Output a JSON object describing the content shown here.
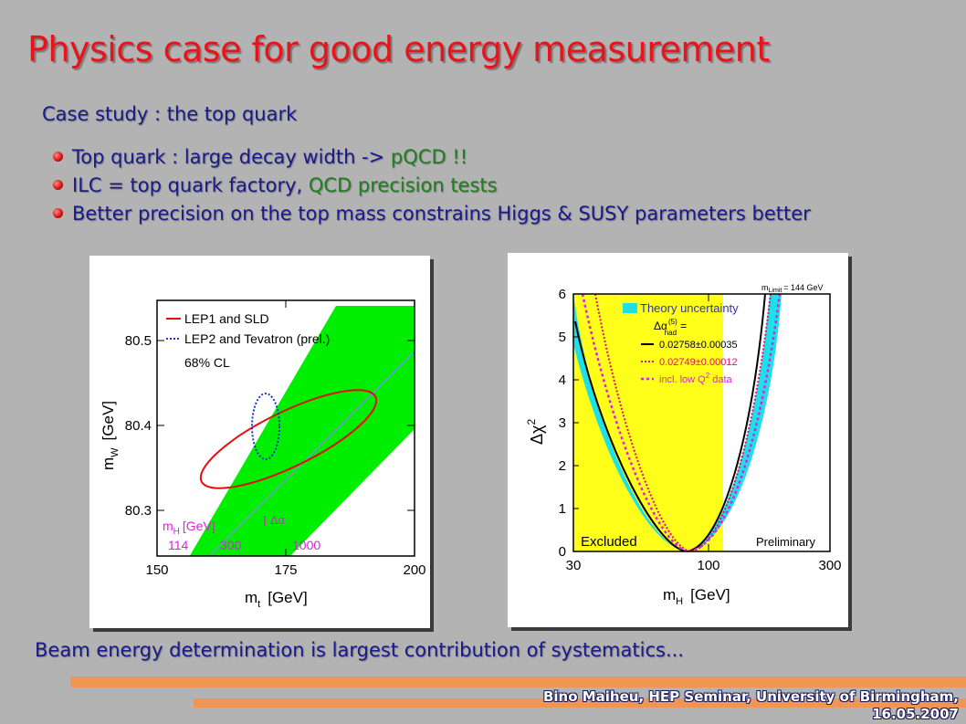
{
  "slide": {
    "title": "Physics case for good energy measurement",
    "subtitle": "Case study : the top quark",
    "bullets": [
      {
        "text": "Top quark : large decay width -> ",
        "highlight": "pQCD !!"
      },
      {
        "text": "ILC = top quark factory, ",
        "highlight": "QCD precision tests"
      },
      {
        "text": "Better precision on the top mass constrains Higgs & SUSY parameters better",
        "highlight": ""
      }
    ],
    "bottom_text": "Beam energy determination is largest contribution of systematics...",
    "footer_line1": "Bino Maiheu, HEP Seminar, University of Birmingham,",
    "footer_line2": "16.05.2007"
  },
  "colors": {
    "title": "#e8141b",
    "text": "#1a1a8c",
    "highlight": "#1f7f1f",
    "accent_bar": "#f29452",
    "band_green": "#00ee00",
    "band_yellow": "#ffff1a",
    "band_cyan": "#1ee0e8"
  },
  "plot1": {
    "xlabel_main": "m",
    "xlabel_sub": "t",
    "xlabel_unit": "[GeV]",
    "ylabel_main": "m",
    "ylabel_sub": "W",
    "ylabel_unit": "[GeV]",
    "xticks": [
      "150",
      "175",
      "200"
    ],
    "yticks": [
      "80.5",
      "80.4",
      "80.3"
    ],
    "legend1": "LEP1 and SLD",
    "legend2": "LEP2 and Tevatron (prel.)",
    "cl_label": "68% CL",
    "mh_label_main": "m",
    "mh_label_sub": "H",
    "mh_label_unit": "[GeV]",
    "mh_values": [
      "114",
      "300",
      "1000"
    ],
    "delta_alpha": "Δα"
  },
  "plot2": {
    "mlimit_label": "m",
    "mlimit_sub": "Limit",
    "mlimit_value": "= 144 GeV",
    "theory_label": "Theory uncertainty",
    "dalpha_label": "Δα",
    "dalpha_sup": "(5)",
    "dalpha_sub": "had",
    "dalpha_eq": "=",
    "legend_solid": "0.02758±0.00035",
    "legend_dotted": "0.02749±0.00012",
    "legend_lowq": "incl. low Q",
    "legend_lowq_sup": "2",
    "legend_lowq_end": "data",
    "excluded": "Excluded",
    "preliminary": "Preliminary",
    "xlabel_main": "m",
    "xlabel_sub": "H",
    "xlabel_unit": "[GeV]",
    "ylabel": "Δχ",
    "ylabel_sup": "2",
    "yticks": [
      "0",
      "1",
      "2",
      "3",
      "4",
      "5",
      "6"
    ],
    "xticks": [
      "30",
      "100",
      "300"
    ]
  }
}
